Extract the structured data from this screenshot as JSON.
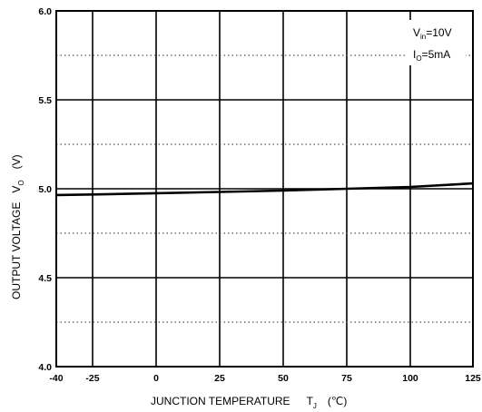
{
  "chart_data": {
    "type": "line",
    "title": "",
    "xlabel": {
      "main": "JUNCTION TEMPERATURE",
      "symbol": "T",
      "subscript": "J",
      "unit": "(℃)"
    },
    "ylabel": {
      "main": "OUTPUT VOLTAGE",
      "symbol": "V",
      "subscript": "O",
      "unit": "(V)"
    },
    "xlim": [
      -40,
      125
    ],
    "ylim": [
      4.0,
      6.0
    ],
    "x_ticks": [
      "-40",
      "-25",
      "0",
      "25",
      "50",
      "75",
      "100",
      "125"
    ],
    "y_ticks": [
      "4.0",
      "4.5",
      "5.0",
      "5.5",
      "6.0"
    ],
    "grid": true,
    "annotations": [
      {
        "symbol": "V",
        "subscript": "in",
        "value": "=10V"
      },
      {
        "symbol": "I",
        "subscript": "O",
        "value": "=5mA"
      }
    ],
    "series": [
      {
        "x": [
          -40,
          -25,
          0,
          25,
          50,
          75,
          100,
          125
        ],
        "y": [
          4.965,
          4.968,
          4.975,
          4.982,
          4.99,
          5.0,
          5.01,
          5.03
        ]
      }
    ]
  }
}
